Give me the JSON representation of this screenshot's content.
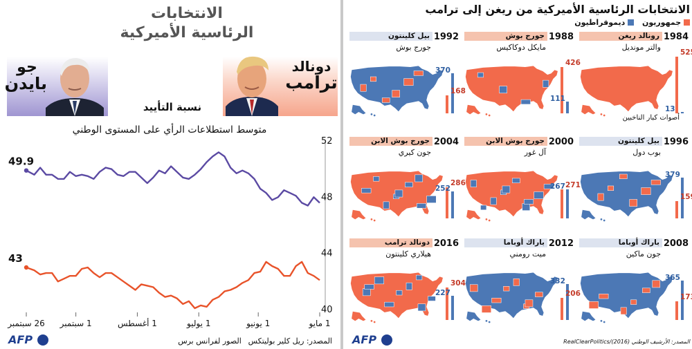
{
  "left": {
    "title_line1": "الانتخابات",
    "title_line2": "الرئاسية الأميركية",
    "trump_name_line1": "دونالد",
    "trump_name_line2": "ترامب",
    "biden_name_line1": "جو",
    "biden_name_line2": "بايدن",
    "approval_label": "نسبة التأييد",
    "source": "المصدر: ريل كلير بوليتكس",
    "photos_credit": "الصور لفرانس برس",
    "logo": "AFP"
  },
  "right": {
    "title": "الانتخابات الرئاسية الأميركية من ريغن إلى ترامب",
    "legend_rep": "جمهوريون",
    "legend_dem": "ديموقراطيون",
    "electors_note": "أصوات كبار الناخبين",
    "source": "المصدر: الأرشيف الوطني (2016)/RealClearPolitics",
    "logo": "AFP",
    "colors": {
      "rep": "#f26a4b",
      "dem": "#4c78b5",
      "rep_band": "#f5c3ae",
      "dem_band": "#dde3ef"
    },
    "elections": [
      {
        "year": "1984",
        "winner": "رونالد ريغن",
        "loser": "والتر مونديل",
        "winner_party": "rep",
        "rep_ev": "525",
        "dem_ev": "13"
      },
      {
        "year": "1988",
        "winner": "جورج بوش",
        "loser": "مايكل دوكاكيس",
        "winner_party": "rep",
        "rep_ev": "426",
        "dem_ev": "111"
      },
      {
        "year": "1992",
        "winner": "بيل كلينتون",
        "loser": "جورج بوش",
        "winner_party": "dem",
        "rep_ev": "168",
        "dem_ev": "370"
      },
      {
        "year": "1996",
        "winner": "بيل كلينتون",
        "loser": "بوب دول",
        "winner_party": "dem",
        "rep_ev": "159",
        "dem_ev": "379"
      },
      {
        "year": "2000",
        "winner": "جورج بوش الابن",
        "loser": "آل غور",
        "winner_party": "rep",
        "rep_ev": "271",
        "dem_ev": "267"
      },
      {
        "year": "2004",
        "winner": "جورج بوش الابن",
        "loser": "جون كيري",
        "winner_party": "rep",
        "rep_ev": "286",
        "dem_ev": "252"
      },
      {
        "year": "2008",
        "winner": "باراك أوباما",
        "loser": "جون ماكين",
        "winner_party": "dem",
        "rep_ev": "173",
        "dem_ev": "365"
      },
      {
        "year": "2012",
        "winner": "باراك أوباما",
        "loser": "ميت رومني",
        "winner_party": "dem",
        "rep_ev": "206",
        "dem_ev": "332"
      },
      {
        "year": "2016",
        "winner": "دونالد ترامب",
        "loser": "هيلاري كلينتون",
        "winner_party": "rep",
        "rep_ev": "304",
        "dem_ev": "227"
      }
    ]
  },
  "chart_data": {
    "type": "line",
    "title": "متوسط استطلاعات الرأي على المستوى الوطني",
    "ylim": [
      40,
      52
    ],
    "y_ticks": [
      "52",
      "48",
      "44",
      "40"
    ],
    "x_ticks": [
      "1 مايو",
      "1 يونيو",
      "1 يوليو",
      "1 أغسطس",
      "1 سبتمبر",
      "26 سبتمبر"
    ],
    "x_range": [
      "2020-05-01",
      "2020-09-26"
    ],
    "grid": false,
    "series": [
      {
        "color": "#5b4aa3",
        "end_label": "49.9",
        "x": [
          "2020-05-01",
          "2020-05-04",
          "2020-05-07",
          "2020-05-10",
          "2020-05-13",
          "2020-05-16",
          "2020-05-19",
          "2020-05-22",
          "2020-05-25",
          "2020-05-28",
          "2020-05-31",
          "2020-06-03",
          "2020-06-06",
          "2020-06-09",
          "2020-06-12",
          "2020-06-15",
          "2020-06-18",
          "2020-06-21",
          "2020-06-24",
          "2020-06-27",
          "2020-06-30",
          "2020-07-03",
          "2020-07-06",
          "2020-07-09",
          "2020-07-12",
          "2020-07-15",
          "2020-07-18",
          "2020-07-21",
          "2020-07-24",
          "2020-07-27",
          "2020-07-30",
          "2020-08-02",
          "2020-08-05",
          "2020-08-08",
          "2020-08-11",
          "2020-08-14",
          "2020-08-17",
          "2020-08-20",
          "2020-08-23",
          "2020-08-26",
          "2020-08-29",
          "2020-09-01",
          "2020-09-04",
          "2020-09-07",
          "2020-09-10",
          "2020-09-13",
          "2020-09-16",
          "2020-09-19",
          "2020-09-22",
          "2020-09-26"
        ],
        "values": [
          47.6,
          48.0,
          47.4,
          47.6,
          48.1,
          48.3,
          48.5,
          48.0,
          47.8,
          48.3,
          48.6,
          49.3,
          49.7,
          49.9,
          49.7,
          50.1,
          50.9,
          51.2,
          50.9,
          50.5,
          50.0,
          49.6,
          49.3,
          49.4,
          49.8,
          50.2,
          49.7,
          49.9,
          49.4,
          49.0,
          49.4,
          49.8,
          49.8,
          49.5,
          49.6,
          50.0,
          50.1,
          49.8,
          49.3,
          49.5,
          49.6,
          49.5,
          49.8,
          49.3,
          49.3,
          49.6,
          49.6,
          50.1,
          49.6,
          49.9
        ]
      },
      {
        "color": "#e8532a",
        "end_label": "43",
        "x": [
          "2020-05-01",
          "2020-05-04",
          "2020-05-07",
          "2020-05-10",
          "2020-05-13",
          "2020-05-16",
          "2020-05-19",
          "2020-05-22",
          "2020-05-25",
          "2020-05-28",
          "2020-05-31",
          "2020-06-03",
          "2020-06-06",
          "2020-06-09",
          "2020-06-12",
          "2020-06-15",
          "2020-06-18",
          "2020-06-21",
          "2020-06-24",
          "2020-06-27",
          "2020-06-30",
          "2020-07-03",
          "2020-07-06",
          "2020-07-09",
          "2020-07-12",
          "2020-07-15",
          "2020-07-18",
          "2020-07-21",
          "2020-07-24",
          "2020-07-27",
          "2020-07-30",
          "2020-08-02",
          "2020-08-05",
          "2020-08-08",
          "2020-08-11",
          "2020-08-14",
          "2020-08-17",
          "2020-08-20",
          "2020-08-23",
          "2020-08-26",
          "2020-08-29",
          "2020-09-01",
          "2020-09-04",
          "2020-09-07",
          "2020-09-10",
          "2020-09-13",
          "2020-09-16",
          "2020-09-19",
          "2020-09-22",
          "2020-09-26"
        ],
        "values": [
          42.1,
          42.4,
          42.6,
          43.4,
          43.1,
          42.4,
          42.4,
          42.9,
          43.1,
          43.4,
          42.7,
          42.6,
          42.1,
          41.9,
          41.6,
          41.4,
          41.3,
          40.9,
          40.7,
          40.2,
          40.3,
          40.1,
          40.6,
          40.4,
          40.8,
          41.0,
          40.9,
          41.2,
          41.6,
          41.7,
          41.8,
          41.4,
          41.7,
          42.0,
          42.3,
          42.6,
          42.6,
          42.3,
          42.6,
          43.0,
          42.9,
          42.4,
          42.4,
          42.2,
          42.0,
          42.6,
          42.6,
          42.5,
          42.8,
          43.0
        ]
      }
    ]
  }
}
